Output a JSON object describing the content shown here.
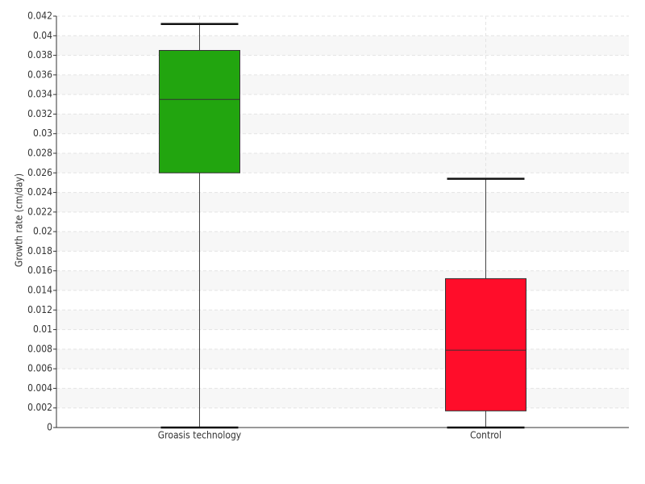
{
  "chart_data": {
    "type": "box",
    "y_label": "Growth rate (cm/day)",
    "categories": [
      "Groasis technology",
      "Control"
    ],
    "boxes": [
      {
        "color": "#22a50f",
        "min": 0,
        "q1": 0.026,
        "median": 0.0335,
        "q3": 0.0385,
        "max": 0.0412
      },
      {
        "color": "#ff0d2a",
        "min": 0,
        "q1": 0.0017,
        "median": 0.0079,
        "q3": 0.0152,
        "max": 0.0254
      }
    ],
    "ylim": [
      0,
      0.042
    ],
    "yticks": [
      0,
      0.002,
      0.004,
      0.006,
      0.008,
      0.01,
      0.012,
      0.014,
      0.016,
      0.018,
      0.02,
      0.022,
      0.024,
      0.026,
      0.028,
      0.03,
      0.032,
      0.034,
      0.036,
      0.038,
      0.04,
      0.042
    ],
    "grid": true
  }
}
